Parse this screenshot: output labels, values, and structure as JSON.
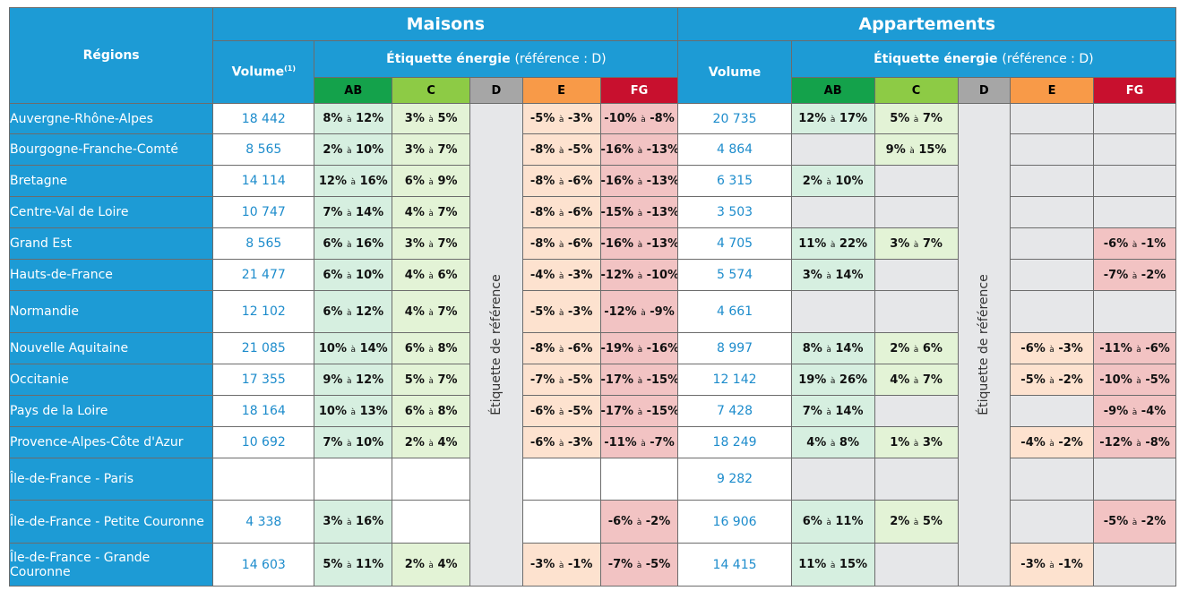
{
  "headers": {
    "regions": "Régions",
    "maisons": "Maisons",
    "appartements": "Appartements",
    "volume_maisons": "Volume",
    "volume_note": "(1)",
    "volume_appartements": "Volume",
    "etiquette_bold": "Étiquette énergie",
    "etiquette_ref": "(référence : D)",
    "classes": [
      "AB",
      "C",
      "D",
      "E",
      "FG"
    ],
    "reference_label": "Étiquette de référence",
    "sep": "à"
  },
  "colors": {
    "header_blue": "#1d9bd5",
    "ab": "#14a24b",
    "c": "#8dcb45",
    "d": "#a6a6a6",
    "e": "#f89a48",
    "fg": "#c8102e"
  },
  "rows": [
    {
      "region": "Auvergne-Rhône-Alpes",
      "m_volume": "18 442",
      "m_ab": [
        "8%",
        "12%"
      ],
      "m_c": [
        "3%",
        "5%"
      ],
      "m_e": [
        "-5%",
        "-3%"
      ],
      "m_fg": [
        "-10%",
        "-8%"
      ],
      "a_volume": "20 735",
      "a_ab": [
        "12%",
        "17%"
      ],
      "a_c": [
        "5%",
        "7%"
      ],
      "a_e": null,
      "a_fg": null
    },
    {
      "region": "Bourgogne-Franche-Comté",
      "m_volume": "8 565",
      "m_ab": [
        "2%",
        "10%"
      ],
      "m_c": [
        "3%",
        "7%"
      ],
      "m_e": [
        "-8%",
        "-5%"
      ],
      "m_fg": [
        "-16%",
        "-13%"
      ],
      "a_volume": "4 864",
      "a_ab": null,
      "a_c": [
        "9%",
        "15%"
      ],
      "a_e": null,
      "a_fg": null
    },
    {
      "region": "Bretagne",
      "m_volume": "14 114",
      "m_ab": [
        "12%",
        "16%"
      ],
      "m_c": [
        "6%",
        "9%"
      ],
      "m_e": [
        "-8%",
        "-6%"
      ],
      "m_fg": [
        "-16%",
        "-13%"
      ],
      "a_volume": "6 315",
      "a_ab": [
        "2%",
        "10%"
      ],
      "a_c": null,
      "a_e": null,
      "a_fg": null
    },
    {
      "region": "Centre-Val de Loire",
      "m_volume": "10 747",
      "m_ab": [
        "7%",
        "14%"
      ],
      "m_c": [
        "4%",
        "7%"
      ],
      "m_e": [
        "-8%",
        "-6%"
      ],
      "m_fg": [
        "-15%",
        "-13%"
      ],
      "a_volume": "3 503",
      "a_ab": null,
      "a_c": null,
      "a_e": null,
      "a_fg": null
    },
    {
      "region": "Grand Est",
      "m_volume": "8 565",
      "m_ab": [
        "6%",
        "16%"
      ],
      "m_c": [
        "3%",
        "7%"
      ],
      "m_e": [
        "-8%",
        "-6%"
      ],
      "m_fg": [
        "-16%",
        "-13%"
      ],
      "a_volume": "4 705",
      "a_ab": [
        "11%",
        "22%"
      ],
      "a_c": [
        "3%",
        "7%"
      ],
      "a_e": null,
      "a_fg": [
        "-6%",
        "-1%"
      ]
    },
    {
      "region": "Hauts-de-France",
      "m_volume": "21 477",
      "m_ab": [
        "6%",
        "10%"
      ],
      "m_c": [
        "4%",
        "6%"
      ],
      "m_e": [
        "-4%",
        "-3%"
      ],
      "m_fg": [
        "-12%",
        "-10%"
      ],
      "a_volume": "5 574",
      "a_ab": [
        "3%",
        "14%"
      ],
      "a_c": null,
      "a_e": null,
      "a_fg": [
        "-7%",
        "-2%"
      ]
    },
    {
      "region": "Normandie",
      "m_volume": "12 102",
      "m_ab": [
        "6%",
        "12%"
      ],
      "m_c": [
        "4%",
        "7%"
      ],
      "m_e": [
        "-5%",
        "-3%"
      ],
      "m_fg": [
        "-12%",
        "-9%"
      ],
      "a_volume": "4 661",
      "a_ab": null,
      "a_c": null,
      "a_e": null,
      "a_fg": null
    },
    {
      "region": "Nouvelle Aquitaine",
      "m_volume": "21 085",
      "m_ab": [
        "10%",
        "14%"
      ],
      "m_c": [
        "6%",
        "8%"
      ],
      "m_e": [
        "-8%",
        "-6%"
      ],
      "m_fg": [
        "-19%",
        "-16%"
      ],
      "a_volume": "8 997",
      "a_ab": [
        "8%",
        "14%"
      ],
      "a_c": [
        "2%",
        "6%"
      ],
      "a_e": [
        "-6%",
        "-3%"
      ],
      "a_fg": [
        "-11%",
        "-6%"
      ]
    },
    {
      "region": "Occitanie",
      "m_volume": "17 355",
      "m_ab": [
        "9%",
        "12%"
      ],
      "m_c": [
        "5%",
        "7%"
      ],
      "m_e": [
        "-7%",
        "-5%"
      ],
      "m_fg": [
        "-17%",
        "-15%"
      ],
      "a_volume": "12 142",
      "a_ab": [
        "19%",
        "26%"
      ],
      "a_c": [
        "4%",
        "7%"
      ],
      "a_e": [
        "-5%",
        "-2%"
      ],
      "a_fg": [
        "-10%",
        "-5%"
      ]
    },
    {
      "region": "Pays de la Loire",
      "m_volume": "18 164",
      "m_ab": [
        "10%",
        "13%"
      ],
      "m_c": [
        "6%",
        "8%"
      ],
      "m_e": [
        "-6%",
        "-5%"
      ],
      "m_fg": [
        "-17%",
        "-15%"
      ],
      "a_volume": "7 428",
      "a_ab": [
        "7%",
        "14%"
      ],
      "a_c": null,
      "a_e": null,
      "a_fg": [
        "-9%",
        "-4%"
      ]
    },
    {
      "region": "Provence-Alpes-Côte d'Azur",
      "m_volume": "10 692",
      "m_ab": [
        "7%",
        "10%"
      ],
      "m_c": [
        "2%",
        "4%"
      ],
      "m_e": [
        "-6%",
        "-3%"
      ],
      "m_fg": [
        "-11%",
        "-7%"
      ],
      "a_volume": "18 249",
      "a_ab": [
        "4%",
        "8%"
      ],
      "a_c": [
        "1%",
        "3%"
      ],
      "a_e": [
        "-4%",
        "-2%"
      ],
      "a_fg": [
        "-12%",
        "-8%"
      ]
    },
    {
      "region": "Île-de-France - Paris",
      "m_volume": "",
      "m_ab": null,
      "m_c": null,
      "m_e": null,
      "m_fg": null,
      "a_volume": "9 282",
      "a_ab": null,
      "a_c": null,
      "a_e": null,
      "a_fg": null
    },
    {
      "region": "Île-de-France - Petite Couronne",
      "m_volume": "4 338",
      "m_ab": [
        "3%",
        "16%"
      ],
      "m_c": null,
      "m_e": null,
      "m_fg": [
        "-6%",
        "-2%"
      ],
      "a_volume": "16 906",
      "a_ab": [
        "6%",
        "11%"
      ],
      "a_c": [
        "2%",
        "5%"
      ],
      "a_e": null,
      "a_fg": [
        "-5%",
        "-2%"
      ]
    },
    {
      "region": "Île-de-France - Grande Couronne",
      "m_volume": "14 603",
      "m_ab": [
        "5%",
        "11%"
      ],
      "m_c": [
        "2%",
        "4%"
      ],
      "m_e": [
        "-3%",
        "-1%"
      ],
      "m_fg": [
        "-7%",
        "-5%"
      ],
      "a_volume": "14 415",
      "a_ab": [
        "11%",
        "15%"
      ],
      "a_c": null,
      "a_e": [
        "-3%",
        "-1%"
      ],
      "a_fg": null
    }
  ]
}
